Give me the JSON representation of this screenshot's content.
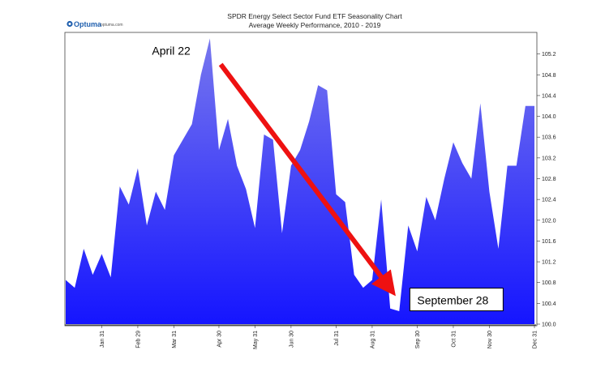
{
  "logo": {
    "name": "Optuma",
    "url": "optuma.com"
  },
  "chart_data": {
    "type": "area",
    "title": "SPDR Energy Select Sector Fund ETF Seasonality Chart",
    "subtitle": "Average Weekly Performance, 2010 - 2019",
    "ylim": [
      100.0,
      105.6
    ],
    "yticks": [
      100.0,
      100.4,
      100.8,
      101.2,
      101.6,
      102.0,
      102.4,
      102.8,
      103.2,
      103.6,
      104.0,
      104.4,
      104.8,
      105.2
    ],
    "ytick_labels": [
      "100.0",
      "100.4",
      "100.8",
      "101.2",
      "101.6",
      "102.0",
      "102.4",
      "102.8",
      "103.2",
      "103.6",
      "104.0",
      "104.4",
      "104.8",
      "105.2"
    ],
    "x_range": [
      1,
      53
    ],
    "x_month_ticks": [
      {
        "label": "Jan 31",
        "week": 5
      },
      {
        "label": "Feb 29",
        "week": 9
      },
      {
        "label": "Mar 31",
        "week": 13
      },
      {
        "label": "Apr 30",
        "week": 18
      },
      {
        "label": "May 31",
        "week": 22
      },
      {
        "label": "Jun 30",
        "week": 26
      },
      {
        "label": "Jul 31",
        "week": 31
      },
      {
        "label": "Aug 31",
        "week": 35
      },
      {
        "label": "Sep 30",
        "week": 40
      },
      {
        "label": "Oct 31",
        "week": 44
      },
      {
        "label": "Nov 30",
        "week": 48
      },
      {
        "label": "Dec 31",
        "week": 53
      }
    ],
    "x": [
      1,
      2,
      3,
      4,
      5,
      6,
      7,
      8,
      9,
      10,
      11,
      12,
      13,
      14,
      15,
      16,
      17,
      18,
      19,
      20,
      21,
      22,
      23,
      24,
      25,
      26,
      27,
      28,
      29,
      30,
      31,
      32,
      33,
      34,
      35,
      36,
      37,
      38,
      39,
      40,
      41,
      42,
      43,
      44,
      45,
      46,
      47,
      48,
      49,
      50,
      51,
      52,
      53
    ],
    "values": [
      100.85,
      100.7,
      101.45,
      100.95,
      101.35,
      100.9,
      102.65,
      102.3,
      103.0,
      101.9,
      102.55,
      102.2,
      103.25,
      103.55,
      103.85,
      104.8,
      105.5,
      103.35,
      103.95,
      103.05,
      102.6,
      101.85,
      103.65,
      103.55,
      101.75,
      103.05,
      103.35,
      103.9,
      104.6,
      104.5,
      102.5,
      102.35,
      100.95,
      100.7,
      100.85,
      102.4,
      100.3,
      100.25,
      101.9,
      101.4,
      102.45,
      102.0,
      102.8,
      103.5,
      103.1,
      102.8,
      104.25,
      102.55,
      101.45,
      103.05,
      103.05,
      104.2,
      104.2
    ],
    "fill_colors": {
      "top": "#7777ee",
      "bottom": "#1515ff"
    },
    "grid": false,
    "annotations": [
      {
        "text": "April 22",
        "week": 17,
        "value": 105.2
      },
      {
        "text": "September 28",
        "week": 39,
        "value": 100.35,
        "boxed": true
      }
    ],
    "arrow": {
      "from_week": 18.2,
      "from_value": 105.0,
      "to_week": 36.7,
      "to_value": 100.75,
      "color": "#ee1111"
    }
  }
}
